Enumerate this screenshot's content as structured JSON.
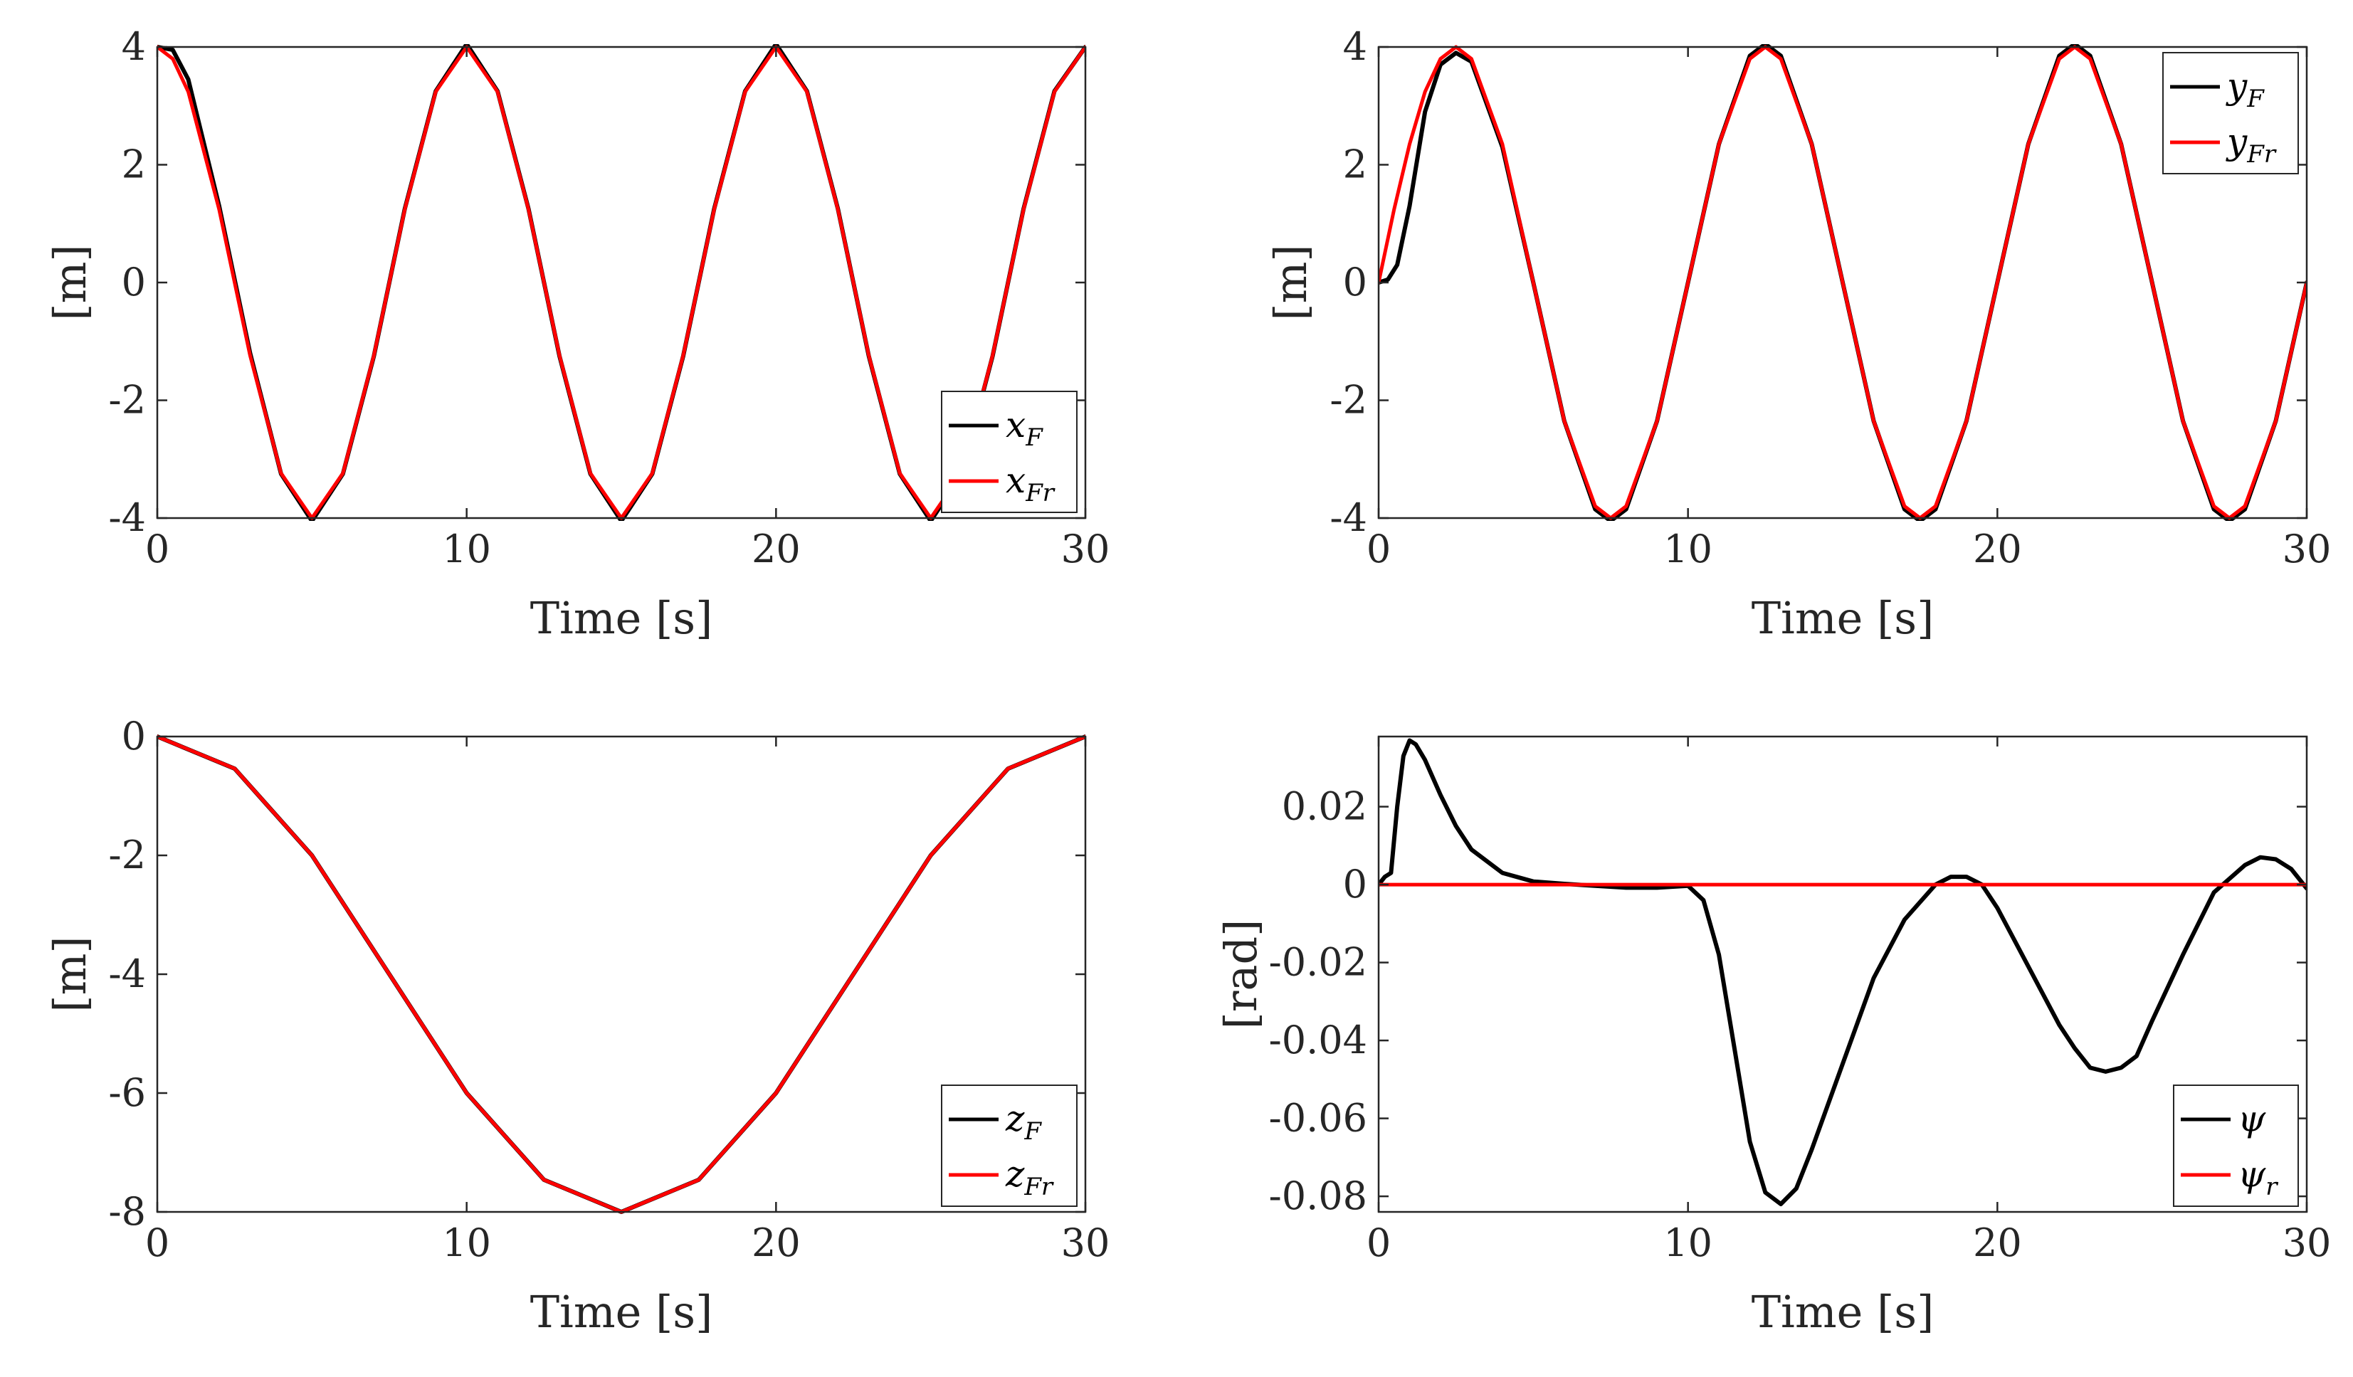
{
  "chart_data": [
    {
      "type": "line",
      "xlabel": "Time [s]",
      "ylabel": "[m]",
      "xlim": [
        0,
        30
      ],
      "ylim": [
        -4,
        4
      ],
      "xticks": [
        0,
        10,
        20,
        30
      ],
      "yticks": [
        -4,
        -2,
        0,
        2,
        4
      ],
      "xtick_labels": [
        "0",
        "10",
        "20",
        "30"
      ],
      "ytick_labels": [
        "-4",
        "-2",
        "0",
        "2",
        "4"
      ],
      "grid": false,
      "legend_position": "bottom-right",
      "legend": [
        {
          "main": "x",
          "sub": "F",
          "color": "#000000"
        },
        {
          "main": "x",
          "sub": "Fr",
          "color": "#ff0000"
        }
      ],
      "series": [
        {
          "color": "#000000",
          "x": [
            0,
            0.5,
            1,
            2,
            3,
            4,
            5,
            6,
            7,
            8,
            9,
            10,
            11,
            12,
            13,
            14,
            15,
            16,
            17,
            18,
            19,
            20,
            21,
            22,
            23,
            24,
            25,
            26,
            27,
            28,
            29,
            30
          ],
          "y": [
            4.0,
            3.95,
            3.45,
            1.3,
            -1.2,
            -3.25,
            -4.05,
            -3.25,
            -1.25,
            1.25,
            3.25,
            4.05,
            3.25,
            1.25,
            -1.25,
            -3.25,
            -4.05,
            -3.25,
            -1.25,
            1.25,
            3.25,
            4.05,
            3.25,
            1.25,
            -1.25,
            -3.25,
            -4.05,
            -3.25,
            -1.25,
            1.25,
            3.25,
            4.0
          ]
        },
        {
          "color": "#ff0000",
          "x": [
            0,
            0.5,
            1,
            2,
            3,
            4,
            5,
            6,
            7,
            8,
            9,
            10,
            11,
            12,
            13,
            14,
            15,
            16,
            17,
            18,
            19,
            20,
            21,
            22,
            23,
            24,
            25,
            26,
            27,
            28,
            29,
            30
          ],
          "y": [
            4.0,
            3.8,
            3.24,
            1.24,
            -1.24,
            -3.24,
            -4.0,
            -3.24,
            -1.24,
            1.24,
            3.24,
            4.0,
            3.24,
            1.24,
            -1.24,
            -3.24,
            -4.0,
            -3.24,
            -1.24,
            1.24,
            3.24,
            4.0,
            3.24,
            1.24,
            -1.24,
            -3.24,
            -4.0,
            -3.24,
            -1.24,
            1.24,
            3.24,
            4.0
          ]
        }
      ]
    },
    {
      "type": "line",
      "xlabel": "Time [s]",
      "ylabel": "[m]",
      "xlim": [
        0,
        30
      ],
      "ylim": [
        -4,
        4
      ],
      "xticks": [
        0,
        10,
        20,
        30
      ],
      "yticks": [
        -4,
        -2,
        0,
        2,
        4
      ],
      "xtick_labels": [
        "0",
        "10",
        "20",
        "30"
      ],
      "ytick_labels": [
        "-4",
        "-2",
        "0",
        "2",
        "4"
      ],
      "grid": false,
      "legend_position": "top-right",
      "legend": [
        {
          "main": "y",
          "sub": "F",
          "color": "#000000"
        },
        {
          "main": "y",
          "sub": "Fr",
          "color": "#ff0000"
        }
      ],
      "series": [
        {
          "color": "#000000",
          "x": [
            0,
            0.3,
            0.6,
            1,
            1.5,
            2,
            2.5,
            3,
            4,
            5,
            6,
            7,
            7.5,
            8,
            9,
            10,
            11,
            12,
            12.5,
            13,
            14,
            15,
            16,
            17,
            17.5,
            18,
            19,
            20,
            21,
            22,
            22.5,
            23,
            24,
            25,
            26,
            27,
            27.5,
            28,
            29,
            30
          ],
          "y": [
            0,
            0.05,
            0.3,
            1.3,
            2.9,
            3.7,
            3.9,
            3.75,
            2.3,
            0.0,
            -2.35,
            -3.85,
            -4.05,
            -3.85,
            -2.35,
            0.0,
            2.35,
            3.85,
            4.05,
            3.85,
            2.35,
            0.0,
            -2.35,
            -3.85,
            -4.05,
            -3.85,
            -2.35,
            0.0,
            2.35,
            3.85,
            4.05,
            3.85,
            2.35,
            0.0,
            -2.35,
            -3.85,
            -4.05,
            -3.85,
            -2.35,
            0.0
          ]
        },
        {
          "color": "#ff0000",
          "x": [
            0,
            0.5,
            1,
            1.5,
            2,
            2.5,
            3,
            4,
            5,
            6,
            7,
            7.5,
            8,
            9,
            10,
            11,
            12,
            12.5,
            13,
            14,
            15,
            16,
            17,
            17.5,
            18,
            19,
            20,
            21,
            22,
            22.5,
            23,
            24,
            25,
            26,
            27,
            27.5,
            28,
            29,
            30
          ],
          "y": [
            0,
            1.24,
            2.35,
            3.24,
            3.8,
            4.0,
            3.8,
            2.35,
            0.0,
            -2.35,
            -3.8,
            -4.0,
            -3.8,
            -2.35,
            0.0,
            2.35,
            3.8,
            4.0,
            3.8,
            2.35,
            0.0,
            -2.35,
            -3.8,
            -4.0,
            -3.8,
            -2.35,
            0.0,
            2.35,
            3.8,
            4.0,
            3.8,
            2.35,
            0.0,
            -2.35,
            -3.8,
            -4.0,
            -3.8,
            -2.35,
            0.0
          ]
        }
      ]
    },
    {
      "type": "line",
      "xlabel": "Time [s]",
      "ylabel": "[m]",
      "xlim": [
        0,
        30
      ],
      "ylim": [
        -8,
        0
      ],
      "xticks": [
        0,
        10,
        20,
        30
      ],
      "yticks": [
        -8,
        -6,
        -4,
        -2,
        0
      ],
      "xtick_labels": [
        "0",
        "10",
        "20",
        "30"
      ],
      "ytick_labels": [
        "-8",
        "-6",
        "-4",
        "-2",
        "0"
      ],
      "grid": false,
      "legend_position": "bottom-right",
      "legend": [
        {
          "main": "z",
          "sub": "F",
          "color": "#000000"
        },
        {
          "main": "z",
          "sub": "Fr",
          "color": "#ff0000"
        }
      ],
      "series": [
        {
          "color": "#000000",
          "x": [
            0,
            2.5,
            5,
            7.5,
            10,
            12.5,
            15,
            17.5,
            20,
            22.5,
            25,
            27.5,
            30
          ],
          "y": [
            0,
            -0.27,
            -1.0,
            -2.0,
            -3.0,
            -3.73,
            -4.0,
            -3.73,
            -3.0,
            -2.0,
            -1.0,
            -0.27,
            0
          ],
          "scale": 2
        },
        {
          "color": "#ff0000",
          "x": [
            0,
            2.5,
            5,
            7.5,
            10,
            12.5,
            15,
            17.5,
            20,
            22.5,
            25,
            27.5,
            30
          ],
          "y": [
            0,
            -0.54,
            -2.0,
            -4.0,
            -6.0,
            -7.46,
            -8.0,
            -7.46,
            -6.0,
            -4.0,
            -2.0,
            -0.54,
            0
          ]
        }
      ]
    },
    {
      "type": "line",
      "xlabel": "Time [s]",
      "ylabel": "[rad]",
      "xlim": [
        0,
        30
      ],
      "ylim": [
        -0.084,
        0.038
      ],
      "xticks": [
        0,
        10,
        20,
        30
      ],
      "yticks": [
        -0.08,
        -0.06,
        -0.04,
        -0.02,
        0,
        0.02
      ],
      "xtick_labels": [
        "0",
        "10",
        "20",
        "30"
      ],
      "ytick_labels": [
        "-0.08",
        "-0.06",
        "-0.04",
        "-0.02",
        "0",
        "0.02"
      ],
      "grid": false,
      "legend_position": "bottom-right",
      "legend": [
        {
          "main": "ψ",
          "sub": "",
          "color": "#000000"
        },
        {
          "main": "ψ",
          "sub": "r",
          "color": "#ff0000"
        }
      ],
      "series": [
        {
          "color": "#000000",
          "x": [
            0,
            0.2,
            0.4,
            0.6,
            0.8,
            1.0,
            1.2,
            1.5,
            2,
            2.5,
            3,
            4,
            5,
            6,
            7,
            8,
            9,
            10,
            10.5,
            11,
            11.5,
            12,
            12.5,
            13,
            13.5,
            14,
            15,
            16,
            17,
            18,
            18.5,
            19,
            19.5,
            20,
            21,
            22,
            22.5,
            23,
            23.5,
            24,
            24.5,
            25,
            26,
            27,
            28,
            28.5,
            29,
            29.5,
            30
          ],
          "y": [
            0,
            0.002,
            0.003,
            0.02,
            0.033,
            0.037,
            0.036,
            0.032,
            0.023,
            0.015,
            0.009,
            0.003,
            0.0008,
            0.0002,
            -0.0003,
            -0.0008,
            -0.0008,
            -0.0003,
            -0.004,
            -0.018,
            -0.042,
            -0.066,
            -0.079,
            -0.082,
            -0.078,
            -0.068,
            -0.046,
            -0.024,
            -0.009,
            0.0,
            0.002,
            0.002,
            0.0,
            -0.006,
            -0.021,
            -0.036,
            -0.042,
            -0.047,
            -0.048,
            -0.047,
            -0.044,
            -0.035,
            -0.018,
            -0.002,
            0.005,
            0.007,
            0.0065,
            0.004,
            -0.001
          ]
        },
        {
          "color": "#ff0000",
          "x": [
            0,
            30
          ],
          "y": [
            0,
            0
          ]
        }
      ]
    }
  ]
}
